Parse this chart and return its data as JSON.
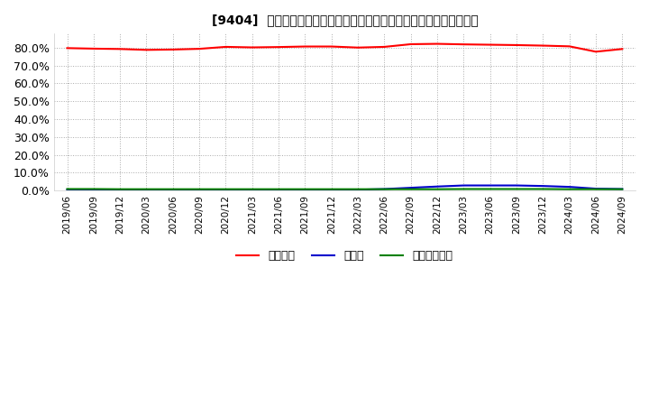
{
  "title": "[9404]  自己資本、のれん、繰延税金資産の総資産に対する比率の推移",
  "title_fontsize": 10,
  "ylim": [
    0,
    88
  ],
  "yticks": [
    0,
    10,
    20,
    30,
    40,
    50,
    60,
    70,
    80
  ],
  "ytick_labels": [
    "0.0%",
    "10.0%",
    "20.0%",
    "30.0%",
    "40.0%",
    "50.0%",
    "60.0%",
    "70.0%",
    "80.0%"
  ],
  "background_color": "#ffffff",
  "grid_color": "#aaaaaa",
  "dates": [
    "2019/06",
    "2019/09",
    "2019/12",
    "2020/03",
    "2020/06",
    "2020/09",
    "2020/12",
    "2021/03",
    "2021/06",
    "2021/09",
    "2021/12",
    "2022/03",
    "2022/06",
    "2022/09",
    "2022/12",
    "2023/03",
    "2023/06",
    "2023/09",
    "2023/12",
    "2024/03",
    "2024/06",
    "2024/09"
  ],
  "jikoshihon": [
    79.8,
    79.5,
    79.3,
    78.8,
    79.0,
    79.4,
    80.5,
    80.2,
    80.4,
    80.7,
    80.7,
    80.1,
    80.5,
    82.0,
    82.2,
    81.9,
    81.7,
    81.5,
    81.2,
    80.8,
    77.8,
    79.3
  ],
  "noren": [
    0.4,
    0.4,
    0.4,
    0.4,
    0.3,
    0.3,
    0.4,
    0.5,
    0.4,
    0.4,
    0.5,
    0.4,
    0.8,
    1.5,
    2.2,
    2.8,
    2.8,
    2.8,
    2.5,
    2.0,
    1.0,
    0.8
  ],
  "kurinobe": [
    0.8,
    0.8,
    0.7,
    0.7,
    0.7,
    0.7,
    0.7,
    0.7,
    0.7,
    0.7,
    0.7,
    0.7,
    0.7,
    0.7,
    0.7,
    0.8,
    0.8,
    0.8,
    0.8,
    0.7,
    0.7,
    0.7
  ],
  "line_colors": [
    "#ff0000",
    "#0000cc",
    "#008000"
  ],
  "legend_labels": [
    "自己資本",
    "のれん",
    "繰延税金資産"
  ],
  "figsize": [
    7.2,
    4.4
  ],
  "dpi": 100
}
